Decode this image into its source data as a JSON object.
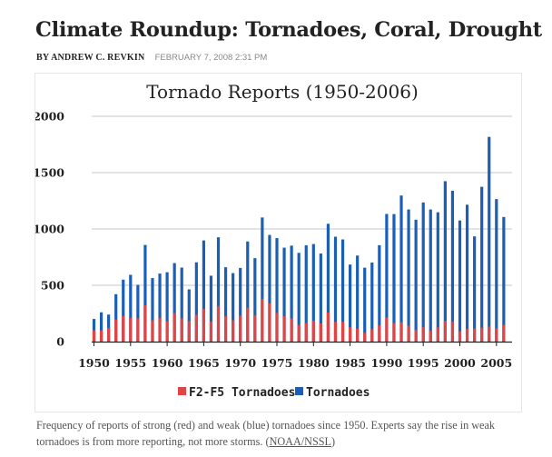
{
  "article": {
    "headline": "Climate Roundup: Tornadoes, Coral, Drought",
    "byline": "BY ANDREW C. REVKIN",
    "date": "FEBRUARY 7, 2008 2:31 PM"
  },
  "caption": {
    "text": "Frequency of reports of strong (red) and weak (blue) tornadoes since 1950. Experts say the rise in weak tornadoes is from more reporting, not more storms. (",
    "link": "NOAA/NSSL",
    "tail": ")"
  },
  "colors": {
    "weak": "#1b5fb4",
    "strong": "#e04545"
  },
  "chart_data": {
    "type": "bar",
    "title": "Tornado Reports (1950-2006)",
    "xlabel": "",
    "ylabel": "",
    "ylim": [
      0,
      2000
    ],
    "yticks": [
      "0",
      "500",
      "1000",
      "1500",
      "2000"
    ],
    "xtick_labels": [
      "1950",
      "1955",
      "1960",
      "1965",
      "1970",
      "1975",
      "1980",
      "1985",
      "1990",
      "1995",
      "2000",
      "2005"
    ],
    "x": [
      1950,
      1951,
      1952,
      1953,
      1954,
      1955,
      1956,
      1957,
      1958,
      1959,
      1960,
      1961,
      1962,
      1963,
      1964,
      1965,
      1966,
      1967,
      1968,
      1969,
      1970,
      1971,
      1972,
      1973,
      1974,
      1975,
      1976,
      1977,
      1978,
      1979,
      1980,
      1981,
      1982,
      1983,
      1984,
      1985,
      1986,
      1987,
      1988,
      1989,
      1990,
      1991,
      1992,
      1993,
      1994,
      1995,
      1996,
      1997,
      1998,
      1999,
      2000,
      2001,
      2002,
      2003,
      2004,
      2005,
      2006
    ],
    "series": [
      {
        "name": "Tornadoes",
        "values": [
          201,
          260,
          240,
          421,
          550,
          593,
          504,
          858,
          564,
          604,
          616,
          697,
          657,
          464,
          704,
          898,
          585,
          926,
          660,
          608,
          654,
          889,
          741,
          1102,
          947,
          919,
          834,
          852,
          788,
          855,
          866,
          782,
          1046,
          931,
          907,
          684,
          764,
          656,
          702,
          856,
          1133,
          1132,
          1297,
          1173,
          1082,
          1235,
          1173,
          1148,
          1424,
          1339,
          1075,
          1215,
          934,
          1374,
          1817,
          1265,
          1106
        ]
      },
      {
        "name": "F2-F5 Tornadoes",
        "values": [
          101,
          100,
          122,
          196,
          227,
          211,
          206,
          322,
          189,
          209,
          182,
          253,
          206,
          184,
          238,
          292,
          179,
          316,
          227,
          189,
          232,
          300,
          235,
          379,
          340,
          255,
          225,
          205,
          148,
          165,
          186,
          161,
          258,
          175,
          175,
          127,
          113,
          78,
          110,
          145,
          213,
          165,
          172,
          141,
          105,
          128,
          97,
          127,
          185,
          177,
          93,
          113,
          117,
          123,
          134,
          118,
          148
        ]
      }
    ],
    "legend": [
      "F2-F5 Tornadoes",
      "Tornadoes"
    ],
    "legend_position": "bottom",
    "grid": "horizontal"
  }
}
